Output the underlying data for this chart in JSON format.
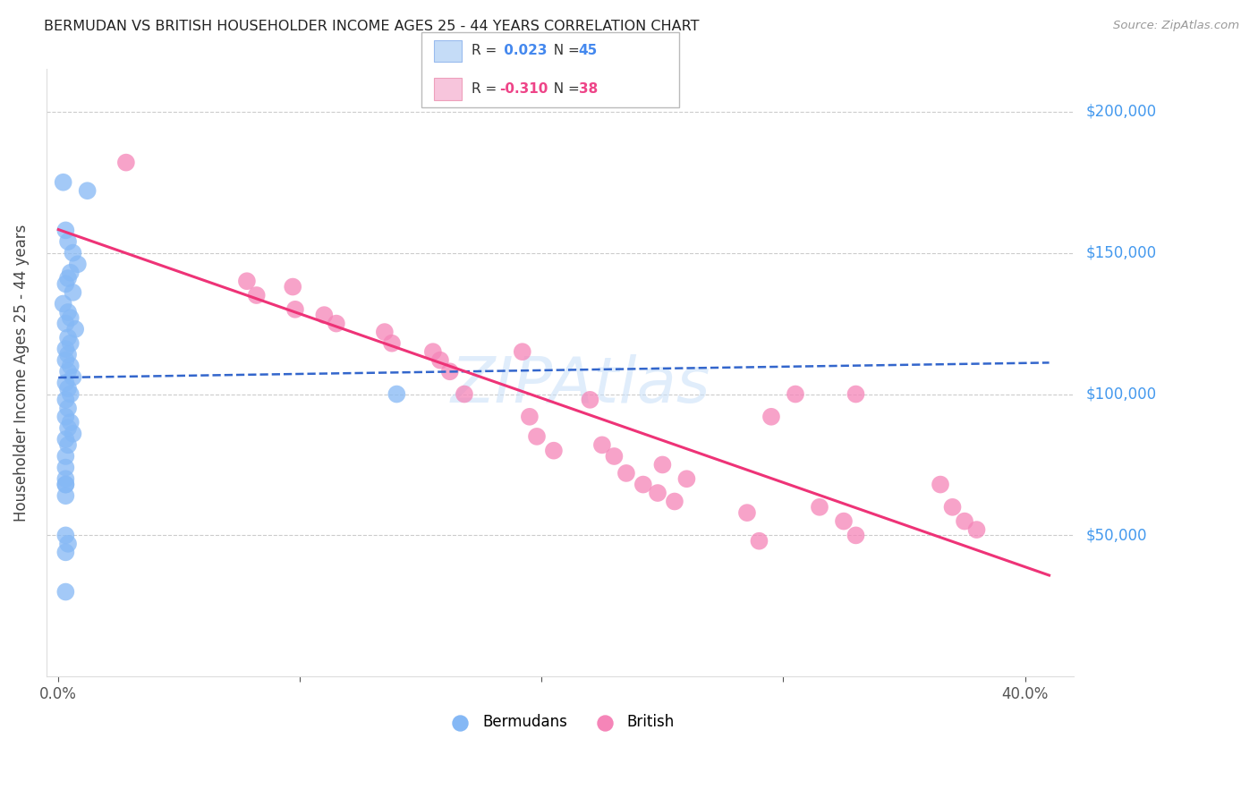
{
  "title": "BERMUDAN VS BRITISH HOUSEHOLDER INCOME AGES 25 - 44 YEARS CORRELATION CHART",
  "source": "Source: ZipAtlas.com",
  "ylabel": "Householder Income Ages 25 - 44 years",
  "xlim": [
    -0.005,
    0.42
  ],
  "ylim": [
    0,
    215000
  ],
  "bermuda_color": "#85b8f5",
  "british_color": "#f585b8",
  "bermuda_line_color": "#3366cc",
  "british_line_color": "#ee3377",
  "background_color": "#ffffff",
  "grid_color": "#cccccc",
  "right_label_color": "#4499ee",
  "watermark_color": "#c8dff8",
  "xlabel_ticks": [
    "0.0%",
    "40.0%"
  ],
  "xlabel_vals": [
    0.0,
    0.4
  ],
  "ylabel_vals": [
    50000,
    100000,
    150000,
    200000
  ],
  "right_labels": [
    "$50,000",
    "$100,000",
    "$150,000",
    "$200,000"
  ],
  "bermudans_x": [
    0.002,
    0.012,
    0.003,
    0.004,
    0.006,
    0.008,
    0.005,
    0.004,
    0.003,
    0.006,
    0.002,
    0.004,
    0.005,
    0.003,
    0.007,
    0.004,
    0.005,
    0.003,
    0.004,
    0.003,
    0.005,
    0.004,
    0.006,
    0.003,
    0.004,
    0.005,
    0.003,
    0.004,
    0.003,
    0.005,
    0.004,
    0.006,
    0.003,
    0.004,
    0.003,
    0.003,
    0.003,
    0.003,
    0.003,
    0.003,
    0.004,
    0.003,
    0.003,
    0.003,
    0.14
  ],
  "bermudans_y": [
    175000,
    172000,
    158000,
    154000,
    150000,
    146000,
    143000,
    141000,
    139000,
    136000,
    132000,
    129000,
    127000,
    125000,
    123000,
    120000,
    118000,
    116000,
    114000,
    112000,
    110000,
    108000,
    106000,
    104000,
    102000,
    100000,
    98000,
    95000,
    92000,
    90000,
    88000,
    86000,
    84000,
    82000,
    78000,
    74000,
    70000,
    68000,
    64000,
    50000,
    47000,
    44000,
    30000,
    68000,
    100000
  ],
  "british_x": [
    0.028,
    0.078,
    0.082,
    0.097,
    0.098,
    0.11,
    0.115,
    0.135,
    0.138,
    0.155,
    0.158,
    0.162,
    0.168,
    0.192,
    0.195,
    0.198,
    0.205,
    0.22,
    0.225,
    0.23,
    0.235,
    0.242,
    0.248,
    0.255,
    0.285,
    0.29,
    0.295,
    0.305,
    0.315,
    0.325,
    0.33,
    0.365,
    0.37,
    0.375,
    0.26,
    0.25,
    0.33,
    0.38
  ],
  "british_y": [
    182000,
    140000,
    135000,
    138000,
    130000,
    128000,
    125000,
    122000,
    118000,
    115000,
    112000,
    108000,
    100000,
    115000,
    92000,
    85000,
    80000,
    98000,
    82000,
    78000,
    72000,
    68000,
    65000,
    62000,
    58000,
    48000,
    92000,
    100000,
    60000,
    55000,
    50000,
    68000,
    60000,
    55000,
    70000,
    75000,
    100000,
    52000
  ]
}
